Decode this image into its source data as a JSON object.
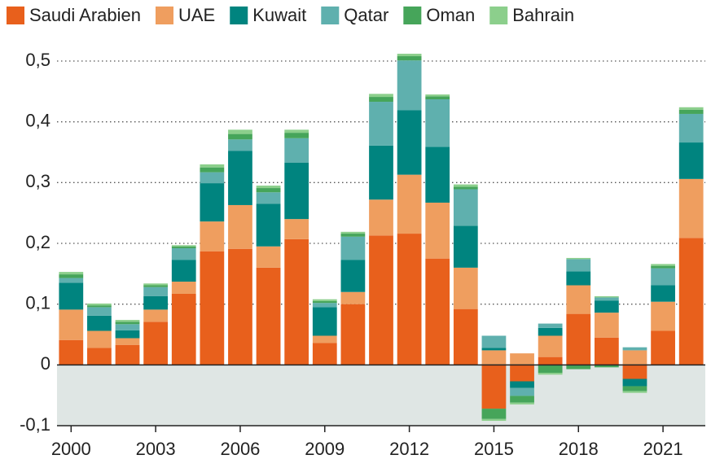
{
  "chart_data": {
    "type": "bar",
    "stacked": true,
    "x": [
      2000,
      2001,
      2002,
      2003,
      2004,
      2005,
      2006,
      2007,
      2008,
      2009,
      2010,
      2011,
      2012,
      2013,
      2014,
      2015,
      2016,
      2017,
      2018,
      2019,
      2020,
      2021,
      2022
    ],
    "xticks": [
      2000,
      2003,
      2006,
      2009,
      2012,
      2015,
      2018,
      2021
    ],
    "xlim": [
      1999.5,
      2022.5
    ],
    "ylim": [
      -0.1,
      0.5
    ],
    "yticks": [
      {
        "value": -0.1,
        "label": "-0,1"
      },
      0,
      {
        "value": 0.1,
        "label": "0,1"
      },
      {
        "value": 0.2,
        "label": "0,2"
      },
      {
        "value": 0.3,
        "label": "0,3"
      },
      {
        "value": 0.4,
        "label": "0,4"
      },
      {
        "value": 0.5,
        "label": "0,5"
      }
    ],
    "grid": true,
    "legend": "top",
    "negative_band_color": "#dfe6e4",
    "series": [
      {
        "name": "Saudi Arabien",
        "color": "#e8601c",
        "values": [
          0.041,
          0.028,
          0.033,
          0.071,
          0.117,
          0.187,
          0.191,
          0.16,
          0.207,
          0.036,
          0.1,
          0.213,
          0.216,
          0.175,
          0.092,
          -0.072,
          -0.027,
          0.013,
          0.084,
          0.045,
          -0.023,
          0.056,
          0.209
        ]
      },
      {
        "name": "UAE",
        "color": "#ef9e5f",
        "values": [
          0.05,
          0.028,
          0.011,
          0.02,
          0.02,
          0.049,
          0.072,
          0.035,
          0.033,
          0.012,
          0.02,
          0.059,
          0.097,
          0.092,
          0.068,
          0.024,
          0.019,
          0.035,
          0.047,
          0.041,
          0.024,
          0.048,
          0.097
        ]
      },
      {
        "name": "Kuwait",
        "color": "#00847f",
        "values": [
          0.044,
          0.025,
          0.013,
          0.022,
          0.036,
          0.063,
          0.089,
          0.07,
          0.093,
          0.047,
          0.053,
          0.089,
          0.106,
          0.092,
          0.069,
          0.004,
          -0.011,
          0.013,
          0.023,
          0.02,
          -0.012,
          0.027,
          0.06
        ]
      },
      {
        "name": "Qatar",
        "color": "#5fb0ae",
        "values": [
          0.008,
          0.014,
          0.01,
          0.015,
          0.019,
          0.018,
          0.019,
          0.019,
          0.04,
          0.007,
          0.038,
          0.072,
          0.082,
          0.078,
          0.06,
          0.02,
          -0.013,
          0.007,
          0.02,
          0.005,
          0.005,
          0.028,
          0.047
        ]
      },
      {
        "name": "Oman",
        "color": "#46a55a",
        "values": [
          0.006,
          0.003,
          0.004,
          0.003,
          0.003,
          0.008,
          0.009,
          0.007,
          0.009,
          0.003,
          0.005,
          0.008,
          0.007,
          0.005,
          0.004,
          -0.017,
          -0.011,
          -0.013,
          -0.007,
          -0.004,
          -0.008,
          0.004,
          0.007
        ]
      },
      {
        "name": "Bahrain",
        "color": "#8ccf8c",
        "values": [
          0.004,
          0.003,
          0.003,
          0.003,
          0.002,
          0.005,
          0.007,
          0.004,
          0.005,
          0.003,
          0.003,
          0.005,
          0.004,
          0.003,
          0.004,
          -0.003,
          -0.003,
          -0.003,
          0.002,
          0.002,
          -0.003,
          0.003,
          0.004
        ]
      }
    ]
  }
}
